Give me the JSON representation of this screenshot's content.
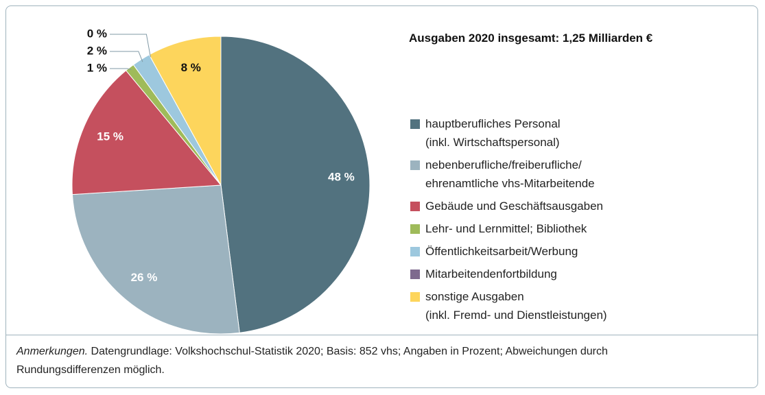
{
  "chart_data": {
    "type": "pie",
    "title": "Ausgaben 2020 insgesamt: 1,25 Milliarden €",
    "categories": [
      "hauptberufliches Personal\n(inkl. Wirtschaftspersonal)",
      "nebenberufliche/freiberufliche/\nehrenamtliche vhs-Mitarbeitende",
      "Gebäude und Geschäftsausgaben",
      "Lehr- und Lernmittel; Bibliothek",
      "Öffentlichkeitsarbeit/Werbung",
      "Mitarbeitendenfortbildung",
      "sonstige Ausgaben\n(inkl. Fremd- und Dienstleistungen)"
    ],
    "values": [
      48,
      26,
      15,
      1,
      2,
      0,
      8
    ],
    "value_labels": [
      "48 %",
      "26 %",
      "15 %",
      "1 %",
      "2 %",
      "0 %",
      "8 %"
    ],
    "colors": [
      "#52727f",
      "#9cb3bf",
      "#c5505e",
      "#9fbb5a",
      "#9dc8de",
      "#7e6a8e",
      "#fdd55c"
    ],
    "note_label": "Anmerkungen.",
    "note_text": "Datengrundlage: Volkshochschul-Statistik 2020; Basis: 852 vhs; Angaben in Prozent; Abweichungen durch Rundungsdifferenzen möglich."
  }
}
